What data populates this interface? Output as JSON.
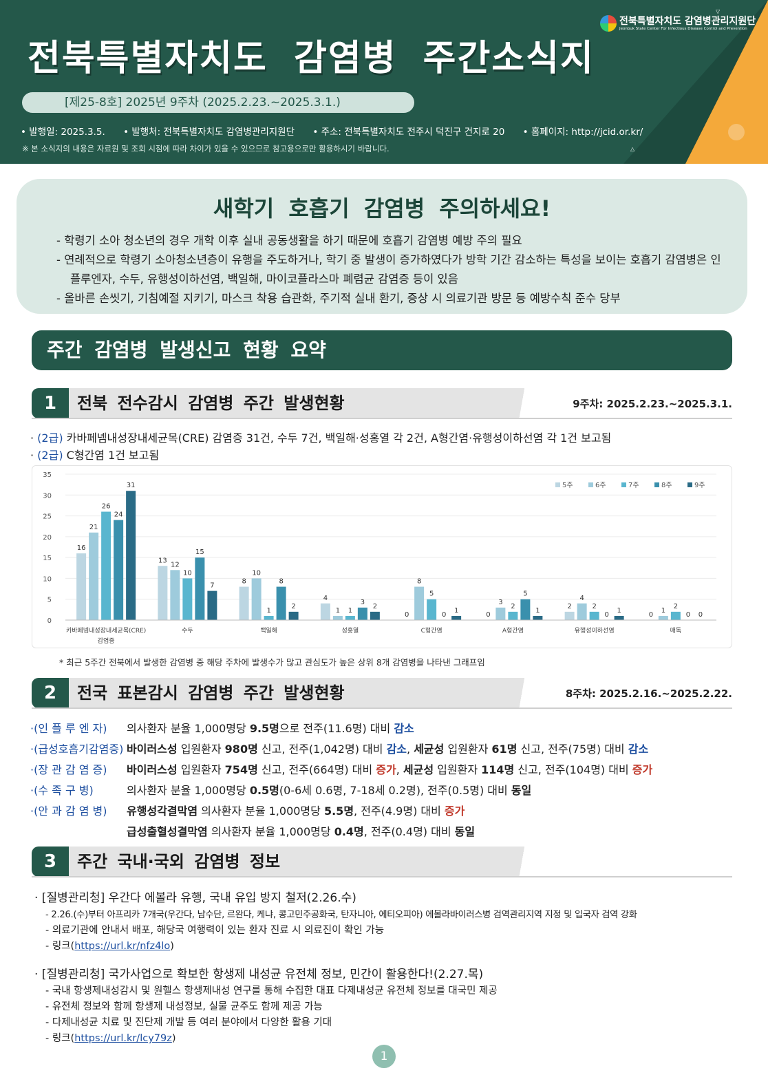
{
  "header": {
    "logo_ko": "전북특별자치도 감염병관리지원단",
    "logo_en": "Jeonbuk State Center For Infectious Disease Control and Prevention",
    "title": "전북특별자치도 감염병 주간소식지",
    "issue": "[제25-8호] 2025년 9주차 (2025.2.23.~2025.3.1.)",
    "published": "• 발행일: 2025.3.5.",
    "publisher": "• 발행처: 전북특별자치도 감염병관리지원단",
    "address": "• 주소: 전북특별자치도 전주시 덕진구 건지로 20",
    "homepage": "• 홈페이지: http://jcid.or.kr/",
    "note": "※ 본 소식지의 내용은 자료원 및 조회 시점에 따라 차이가 있을 수 있으므로 참고용으로만 활용하시기 바랍니다.",
    "colors": {
      "primary": "#24584a",
      "accent": "#f4a93a"
    }
  },
  "alert": {
    "title": "새학기 호흡기 감염병 주의하세요!",
    "items": [
      "- 학령기 소아 청소년의 경우 개학 이후 실내 공동생활을 하기 때문에 호흡기 감염병 예방 주의 필요",
      "- 연례적으로 학령기 소아청소년층이 유행을 주도하거나, 학기 중 발생이 증가하였다가 방학 기간 감소하는 특성을 보이는 호흡기 감염병은 인플루엔자, 수두, 유행성이하선염, 백일해, 마이코플라스마 폐렴균 감염증 등이 있음",
      "- 올바른 손씻기, 기침예절 지키기, 마스크 착용 습관화, 주기적 실내 환기, 증상 시 의료기관 방문 등 예방수칙 준수 당부"
    ]
  },
  "summary_title": "주간 감염병 발생신고 현황 요약",
  "section1": {
    "num": "1",
    "title": "전북 전수감시 감염병 주간 발생현황",
    "week": "9주차: 2025.2.23.~2025.3.1.",
    "lines": [
      {
        "grade": "(2급)",
        "text": " 카바페넴내성장내세균목(CRE) 감염증 31건, 수두 7건, 백일해·성홍열 각 2건, A형간염·유행성이하선염 각 1건 보고됨"
      },
      {
        "grade": "(2급)",
        "text": " C형간염 1건 보고됨"
      }
    ],
    "chart_note": "* 최근 5주간 전북에서 발생한 감염병 중 해당 주차에 발생수가 많고 관심도가 높은 상위 8개 감염병을 나타낸 그래프임"
  },
  "chart_data": {
    "type": "bar",
    "categories": [
      "카바페넴내성장내세균목(CRE) 감염증",
      "수두",
      "백일해",
      "성홍열",
      "C형간염",
      "A형간염",
      "유행성이하선염",
      "매독"
    ],
    "series": [
      {
        "name": "5주",
        "color": "#bcd6e2",
        "values": [
          16,
          13,
          8,
          4,
          0,
          0,
          2,
          0
        ]
      },
      {
        "name": "6주",
        "color": "#9ecbdc",
        "values": [
          21,
          12,
          10,
          1,
          8,
          3,
          4,
          1
        ]
      },
      {
        "name": "7주",
        "color": "#59b6cf",
        "values": [
          26,
          10,
          1,
          1,
          5,
          2,
          2,
          2
        ]
      },
      {
        "name": "8주",
        "color": "#3a90ad",
        "values": [
          24,
          15,
          8,
          3,
          0,
          5,
          0,
          0
        ]
      },
      {
        "name": "9주",
        "color": "#2a6b86",
        "values": [
          31,
          7,
          2,
          2,
          1,
          1,
          1,
          0
        ]
      }
    ],
    "yticks": [
      0,
      5,
      10,
      15,
      20,
      25,
      30,
      35
    ],
    "ylim": [
      0,
      35
    ],
    "grid": true,
    "legend": "top-right"
  },
  "section2": {
    "num": "2",
    "title": "전국 표본감시 감염병 주간 발생현황",
    "week": "8주차: 2025.2.16.~2025.2.22.",
    "rows": [
      {
        "cat": "·(인 플 루 엔 자)",
        "parts": [
          [
            "",
            "의사환자 분율 1,000명당 "
          ],
          [
            "b",
            "9.5명"
          ],
          [
            "",
            "으로 전주(11.6명) 대비 "
          ],
          [
            "dec",
            "감소"
          ]
        ]
      },
      {
        "cat": "·(급성호흡기감염증)",
        "parts": [
          [
            "b",
            "바이러스성"
          ],
          [
            "",
            " 입원환자 "
          ],
          [
            "b",
            "980명"
          ],
          [
            "",
            " 신고, 전주(1,042명) 대비 "
          ],
          [
            "dec",
            "감소"
          ],
          [
            "",
            ", "
          ],
          [
            "b",
            "세균성"
          ],
          [
            "",
            " 입원환자 "
          ],
          [
            "b",
            "61명"
          ],
          [
            "",
            " 신고, 전주(75명) 대비 "
          ],
          [
            "dec",
            "감소"
          ]
        ]
      },
      {
        "cat": "·(장 관 감 염 증)",
        "parts": [
          [
            "b",
            "바이러스성"
          ],
          [
            "",
            " 입원환자 "
          ],
          [
            "b",
            "754명"
          ],
          [
            "",
            " 신고, 전주(664명) 대비 "
          ],
          [
            "inc",
            "증가"
          ],
          [
            "",
            ", "
          ],
          [
            "b",
            "세균성"
          ],
          [
            "",
            " 입원환자 "
          ],
          [
            "b",
            "114명"
          ],
          [
            "",
            " 신고, 전주(104명) 대비 "
          ],
          [
            "inc",
            "증가"
          ]
        ]
      },
      {
        "cat": "·(수  족  구  병)",
        "parts": [
          [
            "",
            "의사환자 분율 1,000명당 "
          ],
          [
            "b",
            "0.5명"
          ],
          [
            "",
            "(0-6세 0.6명, 7-18세 0.2명), 전주(0.5명) 대비 "
          ],
          [
            "b",
            "동일"
          ]
        ]
      },
      {
        "cat": "·(안 과 감 염 병)",
        "parts": [
          [
            "b",
            "유행성각결막염"
          ],
          [
            "",
            " 의사환자 분율 1,000명당 "
          ],
          [
            "b",
            "5.5명"
          ],
          [
            "",
            ", 전주(4.9명) 대비 "
          ],
          [
            "inc",
            "증가"
          ]
        ]
      },
      {
        "cat": "",
        "parts": [
          [
            "b",
            "급성출혈성결막염"
          ],
          [
            "",
            " 의사환자 분율 1,000명당 "
          ],
          [
            "b",
            "0.4명"
          ],
          [
            "",
            ", 전주(0.4명) 대비 "
          ],
          [
            "b",
            "동일"
          ]
        ]
      }
    ]
  },
  "section3": {
    "num": "3",
    "title": "주간 국내·국외 감염병 정보",
    "news": [
      {
        "head": "· [질병관리청] 우간다 에볼라 유행, 국내 유입 방지 철저(2.26.수)",
        "subs": [
          "- 2.26.(수)부터 아프리카 7개국(우간다, 남수단, 르완다, 케냐, 콩고민주공화국, 탄자니아, 에티오피아) 에볼라바이러스병 검역관리지역 지정 및 입국자 검역 강화",
          "- 의료기관에 안내서 배포, 해당국 여행력이 있는 환자 진료 시 의료진이 확인 가능"
        ],
        "link_prefix": "- 링크(",
        "link": "https://url.kr/nfz4lo",
        "link_suffix": ")"
      },
      {
        "head": "· [질병관리청] 국가사업으로 확보한 항생제 내성균 유전체 정보, 민간이 활용한다!(2.27.목)",
        "subs": [
          "- 국내 항생제내성감시 및 원헬스 항생제내성 연구를 통해 수집한 대표 다제내성균 유전체 정보를 대국민 제공",
          "- 유전체 정보와 함께 항생제 내성정보, 실물 균주도 함께 제공 가능",
          "- 다제내성균 치료 및 진단제 개발 등 여러 분야에서 다양한 활용 기대"
        ],
        "link_prefix": "- 링크(",
        "link": "https://url.kr/lcy79z",
        "link_suffix": ")"
      }
    ]
  },
  "page_number": "1"
}
